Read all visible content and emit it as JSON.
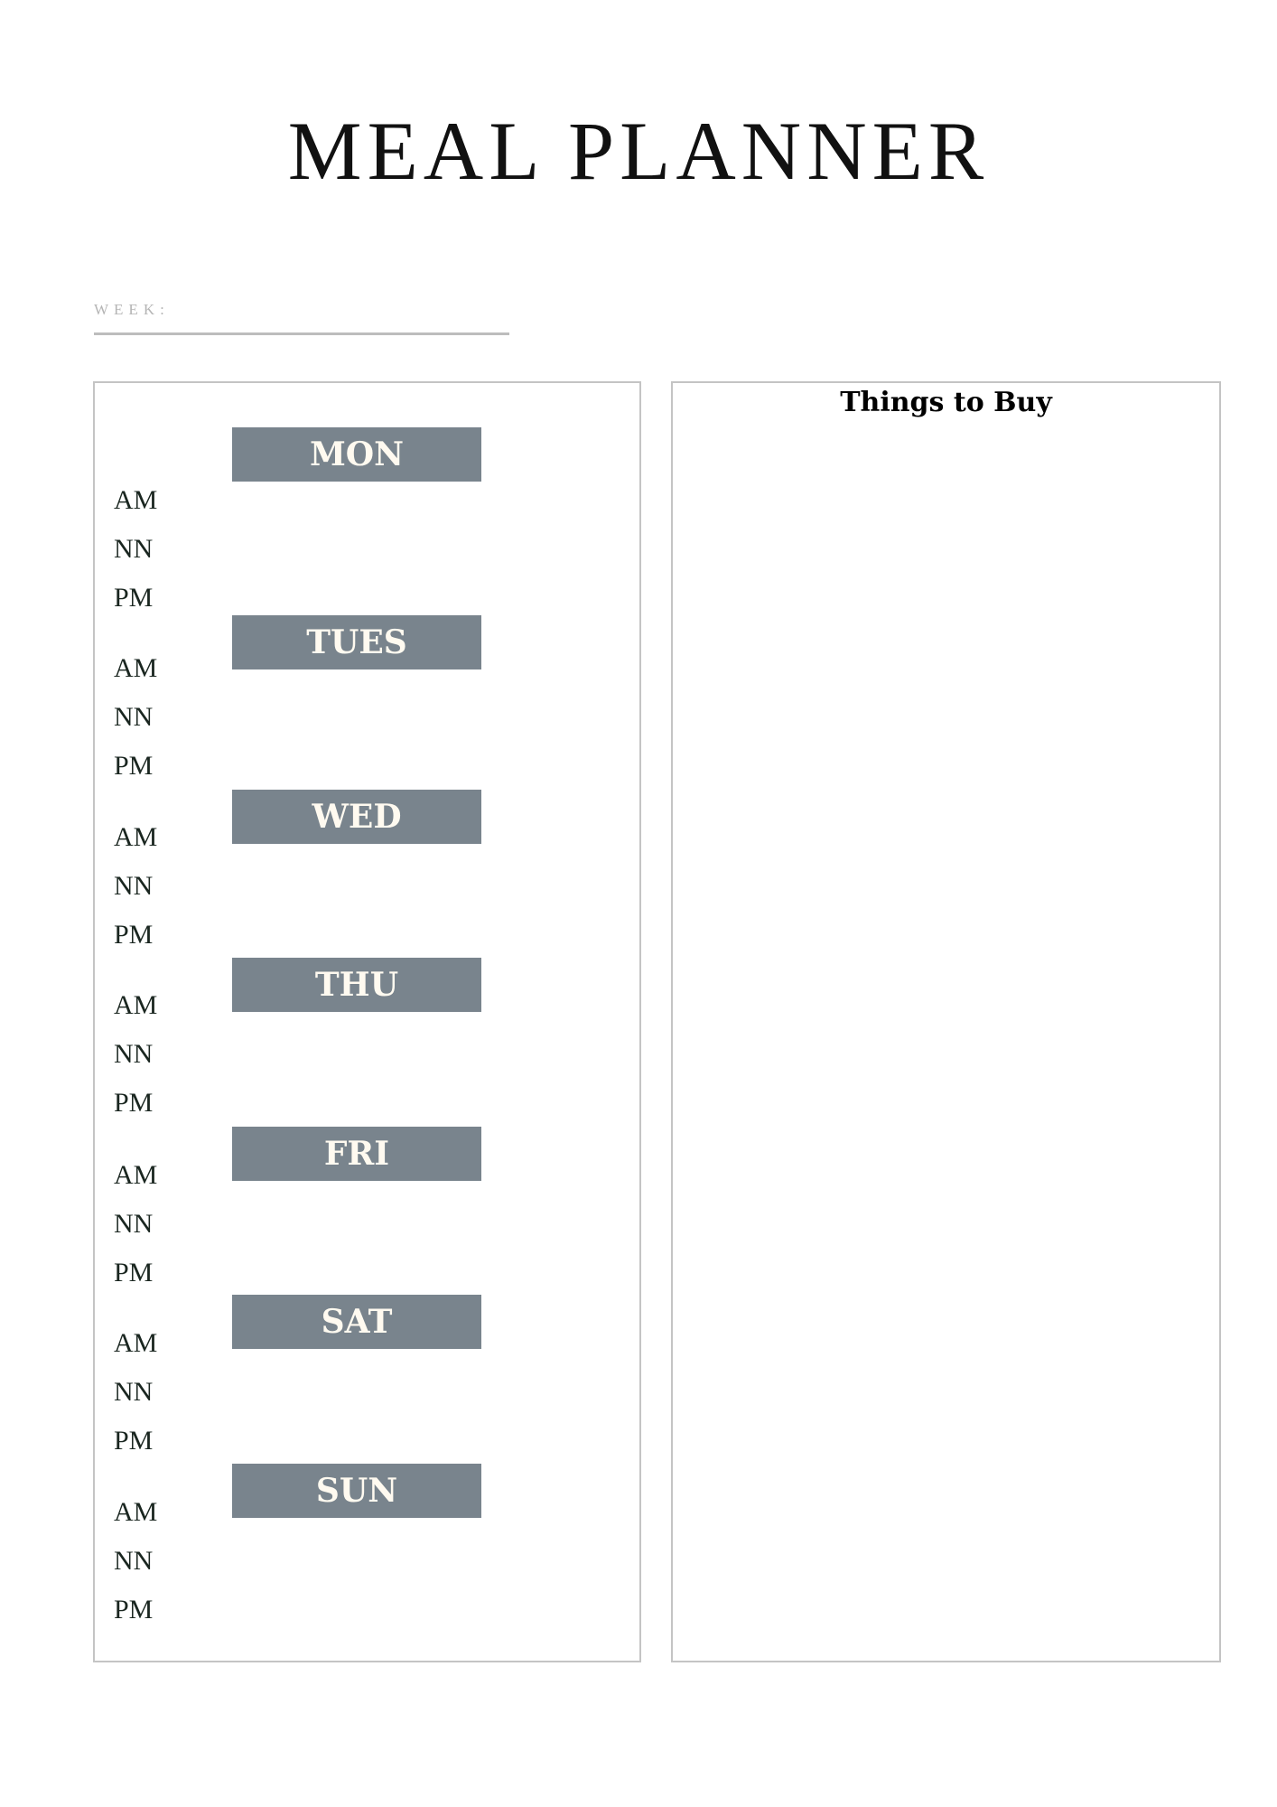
{
  "title": "MEAL PLANNER",
  "week": {
    "label": "WEEK:",
    "value": ""
  },
  "things_to_buy": {
    "title": "Things to Buy"
  },
  "colors": {
    "day_bar": "#79848d",
    "day_text": "#fffaf0",
    "border": "#c4c4c4",
    "week_label": "#b5b5b5"
  },
  "days": [
    {
      "label": "MON",
      "slots": [
        "AM",
        "NN",
        "PM"
      ]
    },
    {
      "label": "TUES",
      "slots": [
        "AM",
        "NN",
        "PM"
      ]
    },
    {
      "label": "WED",
      "slots": [
        "AM",
        "NN",
        "PM"
      ]
    },
    {
      "label": "THU",
      "slots": [
        "AM",
        "NN",
        "PM"
      ]
    },
    {
      "label": "FRI",
      "slots": [
        "AM",
        "NN",
        "PM"
      ]
    },
    {
      "label": "SAT",
      "slots": [
        "AM",
        "NN",
        "PM"
      ]
    },
    {
      "label": "SUN",
      "slots": [
        "AM",
        "NN",
        "PM"
      ]
    }
  ]
}
